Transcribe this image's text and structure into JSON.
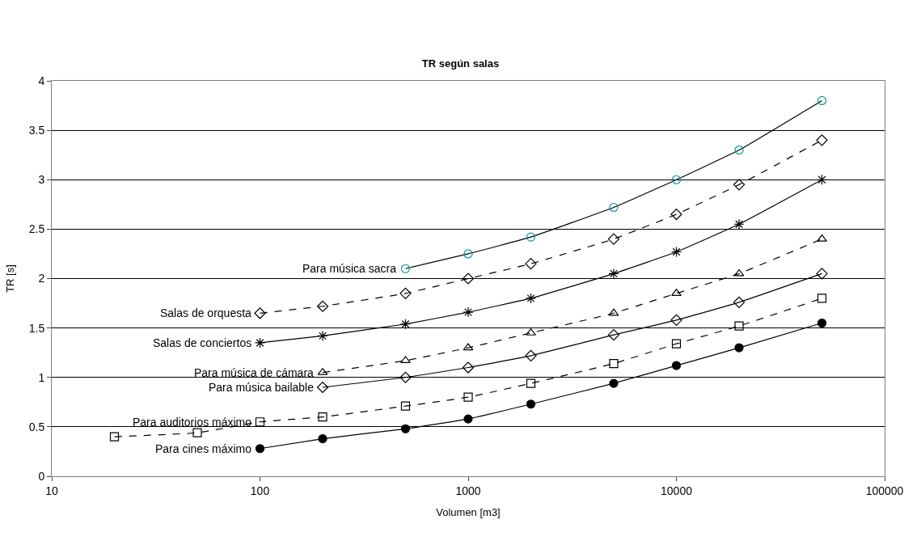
{
  "chart_data": {
    "type": "line",
    "title": "TR según salas",
    "xlabel": "Volumen [m3]",
    "ylabel": "TR [s]",
    "log": "x",
    "xlim": [
      10,
      100000
    ],
    "xticks": [
      10,
      100,
      1000,
      10000,
      100000
    ],
    "ylim": [
      0,
      4
    ],
    "yticks": [
      0,
      0.5,
      1,
      1.5,
      2,
      2.5,
      3,
      3.5,
      4
    ],
    "grid": "y",
    "series": [
      {
        "color": "#009999",
        "marker": "circle",
        "line_style": "solid",
        "x": [
          500,
          1000,
          2000,
          5000,
          10000,
          20000,
          50000
        ],
        "values": [
          2.1,
          2.25,
          2.42,
          2.72,
          3.0,
          3.3,
          3.8
        ]
      },
      {
        "color": "#000000",
        "marker": "diamond",
        "line_style": "dashed",
        "x": [
          100,
          200,
          500,
          1000,
          2000,
          5000,
          10000,
          20000,
          50000
        ],
        "values": [
          1.65,
          1.72,
          1.85,
          2.0,
          2.15,
          2.4,
          2.65,
          2.95,
          3.4
        ]
      },
      {
        "color": "#000000",
        "marker": "cross",
        "line_style": "solid",
        "x": [
          100,
          200,
          500,
          1000,
          2000,
          5000,
          10000,
          20000,
          50000
        ],
        "values": [
          1.35,
          1.42,
          1.54,
          1.66,
          1.8,
          2.05,
          2.27,
          2.55,
          3.0
        ]
      },
      {
        "color": "#000000",
        "marker": "triangle",
        "line_style": "dashed",
        "x": [
          200,
          500,
          1000,
          2000,
          5000,
          10000,
          20000,
          50000
        ],
        "values": [
          1.05,
          1.17,
          1.3,
          1.45,
          1.65,
          1.85,
          2.05,
          2.4
        ]
      },
      {
        "color": "#000000",
        "marker": "diamond",
        "line_style": "solid",
        "x": [
          200,
          500,
          1000,
          2000,
          5000,
          10000,
          20000,
          50000
        ],
        "values": [
          0.9,
          1.0,
          1.1,
          1.22,
          1.43,
          1.58,
          1.76,
          2.05
        ]
      },
      {
        "color": "#000000",
        "marker": "square",
        "line_style": "dashed",
        "x": [
          20,
          50,
          100,
          200,
          500,
          1000,
          2000,
          5000,
          10000,
          20000,
          50000
        ],
        "values": [
          0.4,
          0.44,
          0.55,
          0.6,
          0.71,
          0.8,
          0.94,
          1.14,
          1.34,
          1.52,
          1.8
        ]
      },
      {
        "color": "#000000",
        "marker": "circle",
        "line_style": "solid",
        "x": [
          100,
          200,
          500,
          1000,
          2000,
          5000,
          10000,
          20000,
          50000
        ],
        "values": [
          0.28,
          0.38,
          0.48,
          0.58,
          0.73,
          0.94,
          1.12,
          1.3,
          1.55
        ]
      }
    ],
    "annotations": [
      {
        "text": "Para música sacra",
        "x": 500,
        "y": 2.1
      },
      {
        "text": "Salas de orquesta",
        "x": 100,
        "y": 1.65
      },
      {
        "text": "Salas de conciertos",
        "x": 100,
        "y": 1.35
      },
      {
        "text": "Para música de cámara",
        "x": 200,
        "y": 1.05
      },
      {
        "text": "Para música bailable",
        "x": 200,
        "y": 0.9
      },
      {
        "text": "Para auditorios máximo",
        "x": 100,
        "y": 0.55
      },
      {
        "text": "Para cines máximo",
        "x": 100,
        "y": 0.28
      }
    ]
  }
}
